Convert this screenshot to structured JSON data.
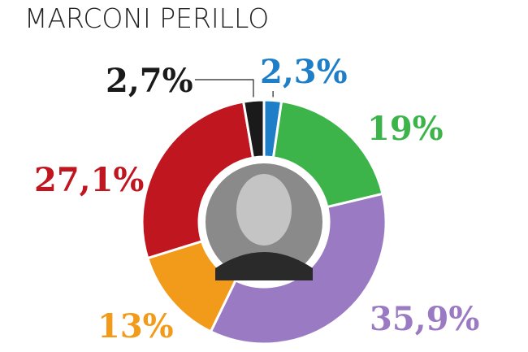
{
  "chart_data": {
    "type": "pie",
    "title": "MARCONI PERILLO",
    "categories": [
      null,
      null,
      null,
      null,
      null,
      null
    ],
    "series": [
      {
        "name": null,
        "values": [
          2.3,
          19,
          35.9,
          13,
          27.1,
          2.7
        ],
        "value_labels": [
          "2,3%",
          "19%",
          "35,9%",
          "13%",
          "27,1%",
          "2,7%"
        ],
        "colors": [
          "#1e7fc8",
          "#3cb44a",
          "#9b7ac4",
          "#f29b1a",
          "#c0161f",
          "#1a1a1a"
        ]
      }
    ],
    "donut": true
  }
}
